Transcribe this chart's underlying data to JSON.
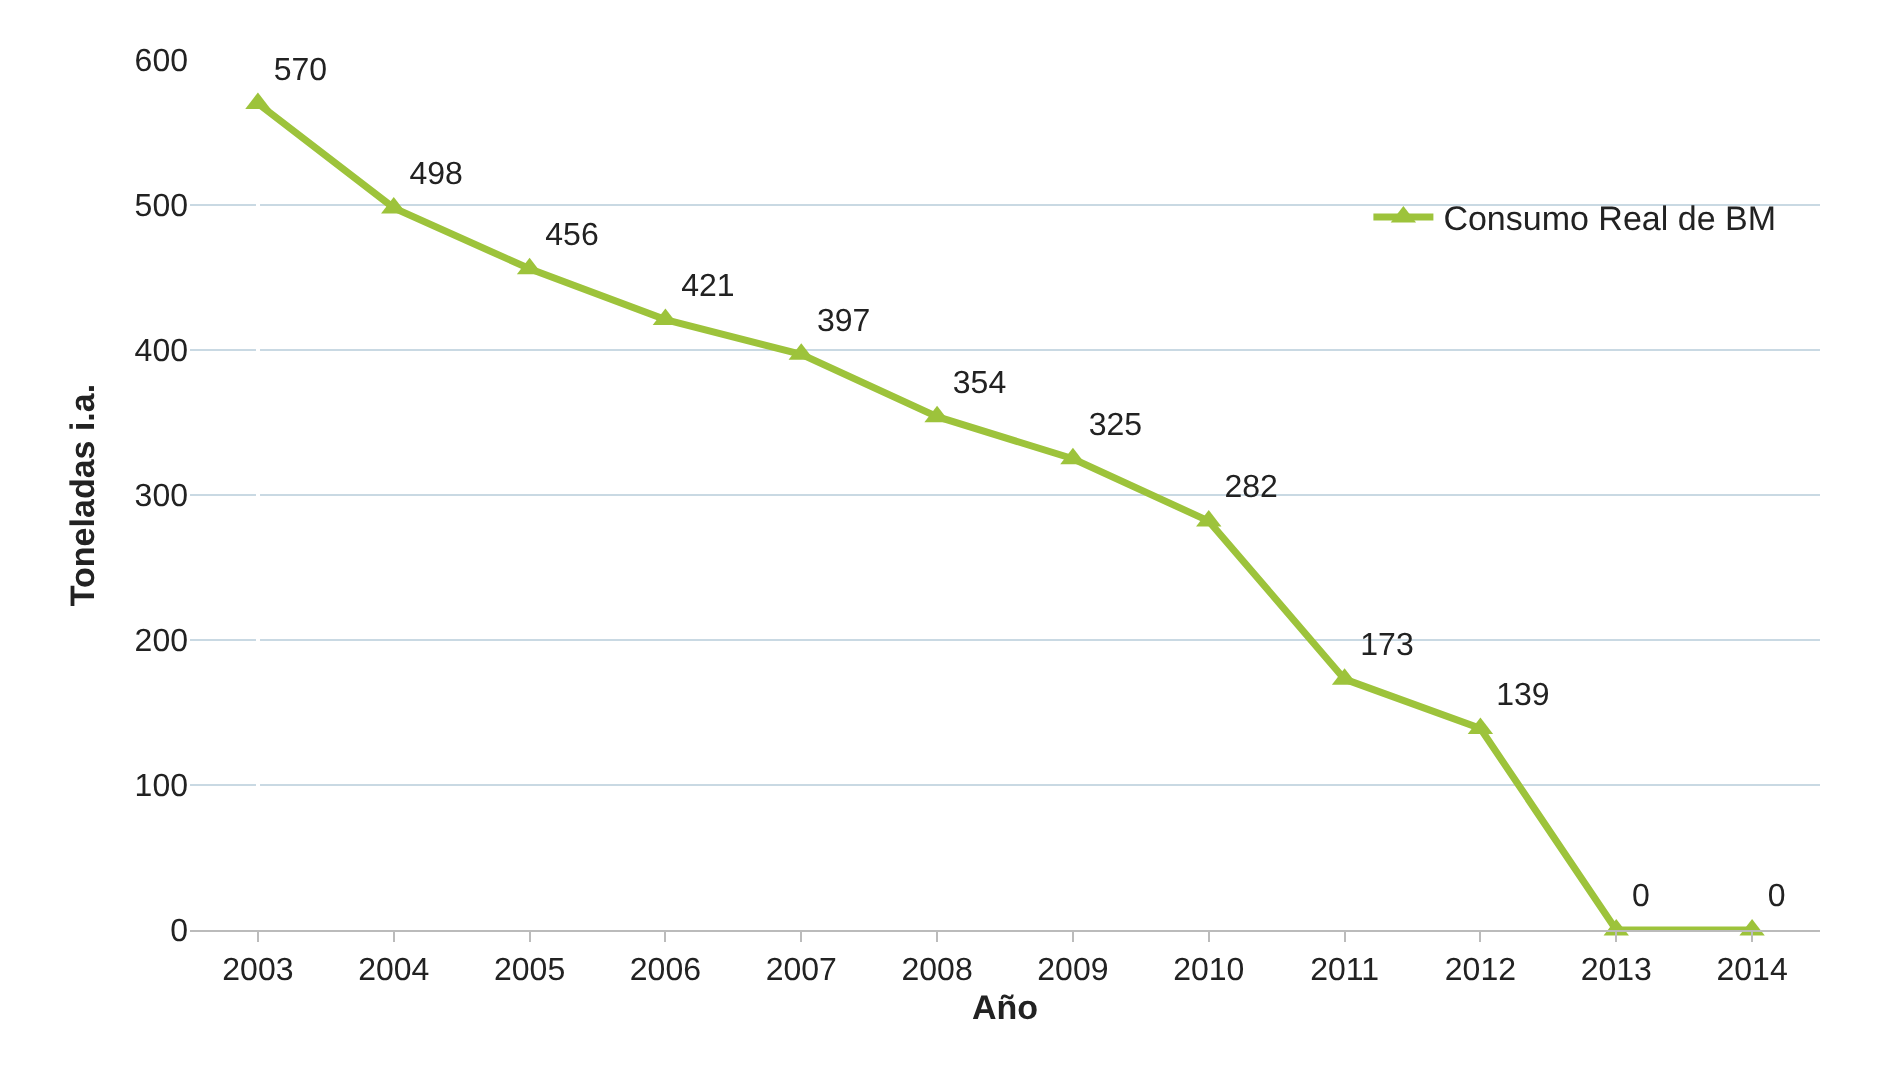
{
  "chart_data": {
    "type": "line",
    "xlabel": "Año",
    "ylabel": "Toneladas i.a.",
    "categories": [
      "2003",
      "2004",
      "2005",
      "2006",
      "2007",
      "2008",
      "2009",
      "2010",
      "2011",
      "2012",
      "2013",
      "2014"
    ],
    "series": [
      {
        "name": "Consumo Real de BM",
        "color": "#9dc33b",
        "values": [
          570,
          498,
          456,
          421,
          397,
          354,
          325,
          282,
          173,
          139,
          0,
          0
        ]
      }
    ],
    "ylim": [
      0,
      600
    ],
    "yticks": [
      0,
      100,
      200,
      300,
      400,
      500,
      600
    ],
    "grid": "y",
    "legend": "top right",
    "marker": "triangle",
    "line_style": "solid",
    "data_labels": true
  }
}
